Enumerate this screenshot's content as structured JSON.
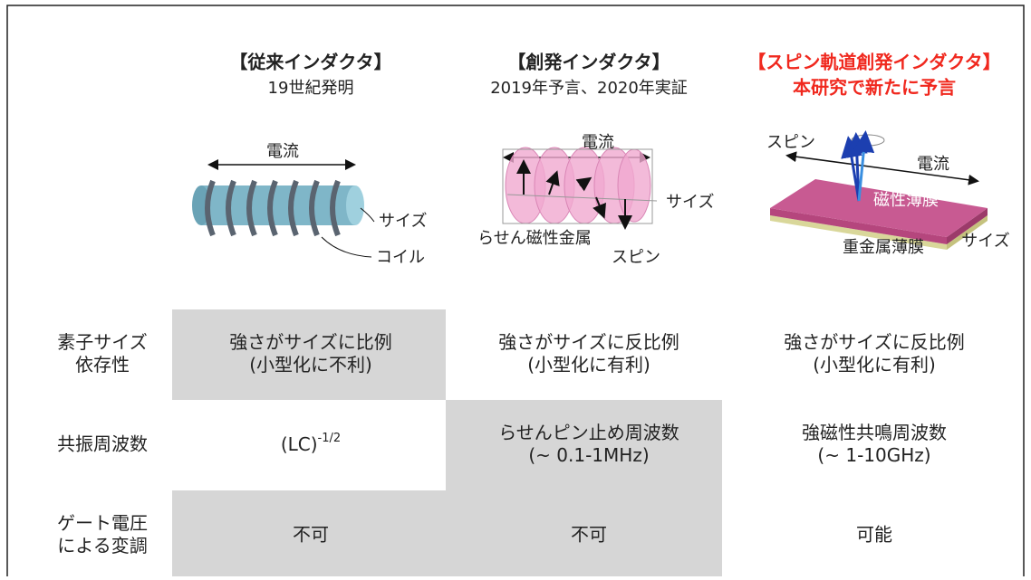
{
  "columns": [
    {
      "title": "【従来インダクタ】",
      "subtitle": "19世紀発明",
      "labels": [
        "電流",
        "サイズ",
        "コイル"
      ]
    },
    {
      "title": "【創発インダクタ】",
      "subtitle": "2019年予言、2020年実証",
      "labels": [
        "電流",
        "サイズ",
        "らせん磁性金属",
        "スピン"
      ]
    },
    {
      "title": "【スピン軌道創発インダクタ】",
      "subtitle": "本研究で新たに予言",
      "labels": [
        "スピン",
        "電流",
        "磁性薄膜",
        "重金属薄膜",
        "サイズ"
      ]
    }
  ],
  "rows": [
    {
      "label": [
        "素子サイズ",
        "依存性"
      ],
      "cells": [
        [
          "強さがサイズに比例",
          "(小型化に不利)"
        ],
        [
          "強さがサイズに反比例",
          "(小型化に有利)"
        ],
        [
          "強さがサイズに反比例",
          "(小型化に有利)"
        ]
      ]
    },
    {
      "label": [
        "共振周波数"
      ],
      "cells": [
        {
          "base": "(LC)",
          "sup": "-1/2"
        },
        [
          "らせんピン止め周波数",
          "(~ 0.1-1MHz)"
        ],
        [
          "強磁性共鳴周波数",
          "(~ 1-10GHz)"
        ]
      ]
    },
    {
      "label": [
        "ゲート電圧",
        "による変調"
      ],
      "cells": [
        [
          "不可"
        ],
        [
          "不可"
        ],
        [
          "可能"
        ]
      ]
    }
  ]
}
